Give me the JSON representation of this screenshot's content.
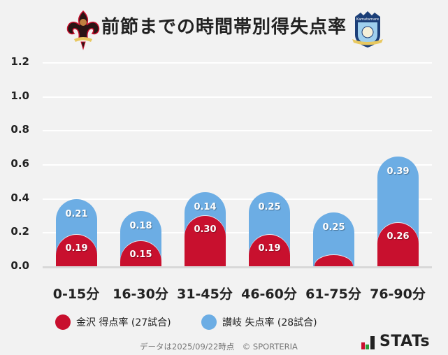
{
  "header": {
    "title": "前節までの時間帯別得失点率",
    "home_logo": "kanazawa-crest-icon",
    "away_logo": "sanuki-crest-icon"
  },
  "colors": {
    "home": "#c8102e",
    "away": "#6cade4",
    "background": "#f2f2f2"
  },
  "chart_data": {
    "type": "bar",
    "stacked": true,
    "title": "前節までの時間帯別得失点率",
    "categories": [
      "0-15分",
      "16-30分",
      "31-45分",
      "46-60分",
      "61-75分",
      "76-90分"
    ],
    "series": [
      {
        "name": "金沢 得点率 (27試合)",
        "color": "#c8102e",
        "values": [
          0.19,
          0.15,
          0.3,
          0.19,
          0.07,
          0.26
        ],
        "labels": [
          "0.19",
          "0.15",
          "0.30",
          "0.19",
          "",
          "0.26"
        ]
      },
      {
        "name": "讃岐 失点率 (28試合)",
        "color": "#6cade4",
        "values": [
          0.21,
          0.18,
          0.14,
          0.25,
          0.25,
          0.39
        ],
        "labels": [
          "0.21",
          "0.18",
          "0.14",
          "0.25",
          "0.25",
          "0.39"
        ]
      }
    ],
    "yticks": [
      "0.0",
      "0.2",
      "0.4",
      "0.6",
      "0.8",
      "1.0",
      "1.2"
    ],
    "ylim": [
      0,
      1.2
    ],
    "xlabel": "",
    "ylabel": "",
    "grid": true,
    "legend_position": "bottom"
  },
  "legend": {
    "home_label": "金沢 得点率 (27試合)",
    "away_label": "讃岐 失点率 (28試合)"
  },
  "footer": {
    "note": "データは2025/09/22時点　© SPORTERIA",
    "brand": "STATs"
  }
}
